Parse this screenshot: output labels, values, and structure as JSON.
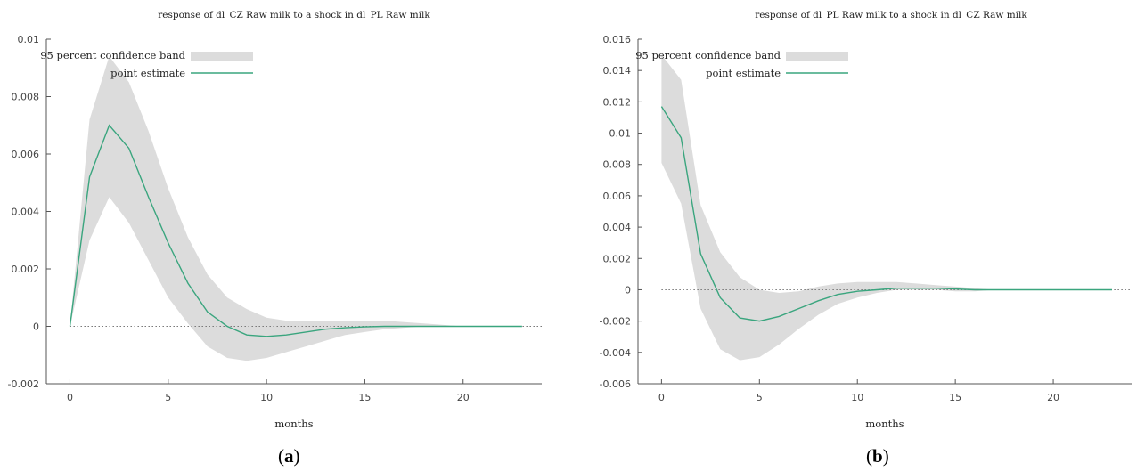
{
  "colors": {
    "band": "#dcdcdc",
    "line": "#3aa57e",
    "axis": "#555555",
    "zero_line": "#777777"
  },
  "captions": [
    {
      "open": "(",
      "letter": "a",
      "close": ")"
    },
    {
      "open": "(",
      "letter": "b",
      "close": ")"
    }
  ],
  "chart_data": [
    {
      "type": "line",
      "title": "response of dl_CZ Raw milk to a shock in dl_PL Raw milk",
      "xlabel": "months",
      "ylabel": "",
      "xlim": [
        -1.2,
        24.0
      ],
      "ylim": [
        -0.002,
        0.01
      ],
      "xticks": [
        0,
        5,
        10,
        15,
        20
      ],
      "xtick_labels": [
        "0",
        "5",
        "10",
        "15",
        "20"
      ],
      "yticks": [
        -0.002,
        0,
        0.002,
        0.004,
        0.006,
        0.008,
        0.01
      ],
      "ytick_labels": [
        "-0.002",
        "0",
        "0.002",
        "0.004",
        "0.006",
        "0.008",
        "0.01"
      ],
      "zero_line": "dotted",
      "legend_position": "top-left",
      "legend": {
        "band": "95 percent confidence band",
        "line": "point estimate"
      },
      "x": [
        0,
        1,
        2,
        3,
        4,
        5,
        6,
        7,
        8,
        9,
        10,
        11,
        12,
        13,
        14,
        15,
        16,
        17,
        18,
        19,
        20,
        21,
        22,
        23
      ],
      "series": [
        {
          "name": "point estimate",
          "values": [
            0,
            0.0052,
            0.007,
            0.0062,
            0.0045,
            0.0029,
            0.0015,
            0.0005,
            0.0,
            -0.0003,
            -0.00035,
            -0.0003,
            -0.0002,
            -0.0001,
            -5e-05,
            -2e-05,
            0.0,
            0.0,
            0.0,
            0.0,
            0.0,
            0.0,
            0.0,
            0.0
          ]
        }
      ],
      "band": {
        "name": "95 percent confidence band",
        "lower": [
          0,
          0.003,
          0.0045,
          0.0036,
          0.0023,
          0.001,
          0.0001,
          -0.0007,
          -0.0011,
          -0.0012,
          -0.0011,
          -0.0009,
          -0.0007,
          -0.0005,
          -0.0003,
          -0.0002,
          -0.0001,
          -5e-05,
          0.0,
          0.0,
          0.0,
          0.0,
          0.0,
          0.0
        ],
        "upper": [
          0,
          0.0072,
          0.0094,
          0.0085,
          0.0068,
          0.0048,
          0.0031,
          0.0018,
          0.001,
          0.0006,
          0.0003,
          0.0002,
          0.0002,
          0.0002,
          0.0002,
          0.0002,
          0.0002,
          0.00015,
          0.0001,
          5e-05,
          0.0,
          0.0,
          0.0,
          0.0
        ]
      }
    },
    {
      "type": "line",
      "title": "response of dl_PL Raw milk to a shock in dl_CZ Raw milk",
      "xlabel": "months",
      "ylabel": "",
      "xlim": [
        -1.2,
        24.0
      ],
      "ylim": [
        -0.006,
        0.016
      ],
      "xticks": [
        0,
        5,
        10,
        15,
        20
      ],
      "xtick_labels": [
        "0",
        "5",
        "10",
        "15",
        "20"
      ],
      "yticks": [
        -0.006,
        -0.004,
        -0.002,
        0,
        0.002,
        0.004,
        0.006,
        0.008,
        0.01,
        0.012,
        0.014,
        0.016
      ],
      "ytick_labels": [
        "-0.006",
        "-0.004",
        "-0.002",
        "0",
        "0.002",
        "0.004",
        "0.006",
        "0.008",
        "0.01",
        "0.012",
        "0.014",
        "0.016"
      ],
      "zero_line": "dotted",
      "legend_position": "top-left",
      "legend": {
        "band": "95 percent confidence band",
        "line": "point estimate"
      },
      "x": [
        0,
        1,
        2,
        3,
        4,
        5,
        6,
        7,
        8,
        9,
        10,
        11,
        12,
        13,
        14,
        15,
        16,
        17,
        18,
        19,
        20,
        21,
        22,
        23
      ],
      "series": [
        {
          "name": "point estimate",
          "values": [
            0.0117,
            0.0097,
            0.0023,
            -0.0005,
            -0.0018,
            -0.002,
            -0.0017,
            -0.0012,
            -0.0007,
            -0.0003,
            -0.0001,
            0.0,
            0.0001,
            0.0001,
            0.0001,
            5e-05,
            0.0,
            0.0,
            0.0,
            0.0,
            0.0,
            0.0,
            0.0,
            0.0
          ]
        }
      ],
      "band": {
        "name": "95 percent confidence band",
        "lower": [
          0.0081,
          0.0055,
          -0.0012,
          -0.0038,
          -0.0045,
          -0.0043,
          -0.0035,
          -0.0025,
          -0.0016,
          -0.0009,
          -0.0005,
          -0.0002,
          0.0,
          0.0,
          0.0,
          -0.0001,
          -0.0001,
          0.0,
          0.0,
          0.0,
          0.0,
          0.0,
          0.0,
          0.0
        ],
        "upper": [
          0.015,
          0.0134,
          0.0054,
          0.0024,
          0.0008,
          0.0,
          -0.0002,
          -0.0001,
          0.0002,
          0.0004,
          0.0005,
          0.0005,
          0.0005,
          0.0004,
          0.0003,
          0.0002,
          0.0001,
          0.0,
          0.0,
          0.0,
          0.0,
          0.0,
          0.0,
          0.0
        ]
      }
    }
  ]
}
